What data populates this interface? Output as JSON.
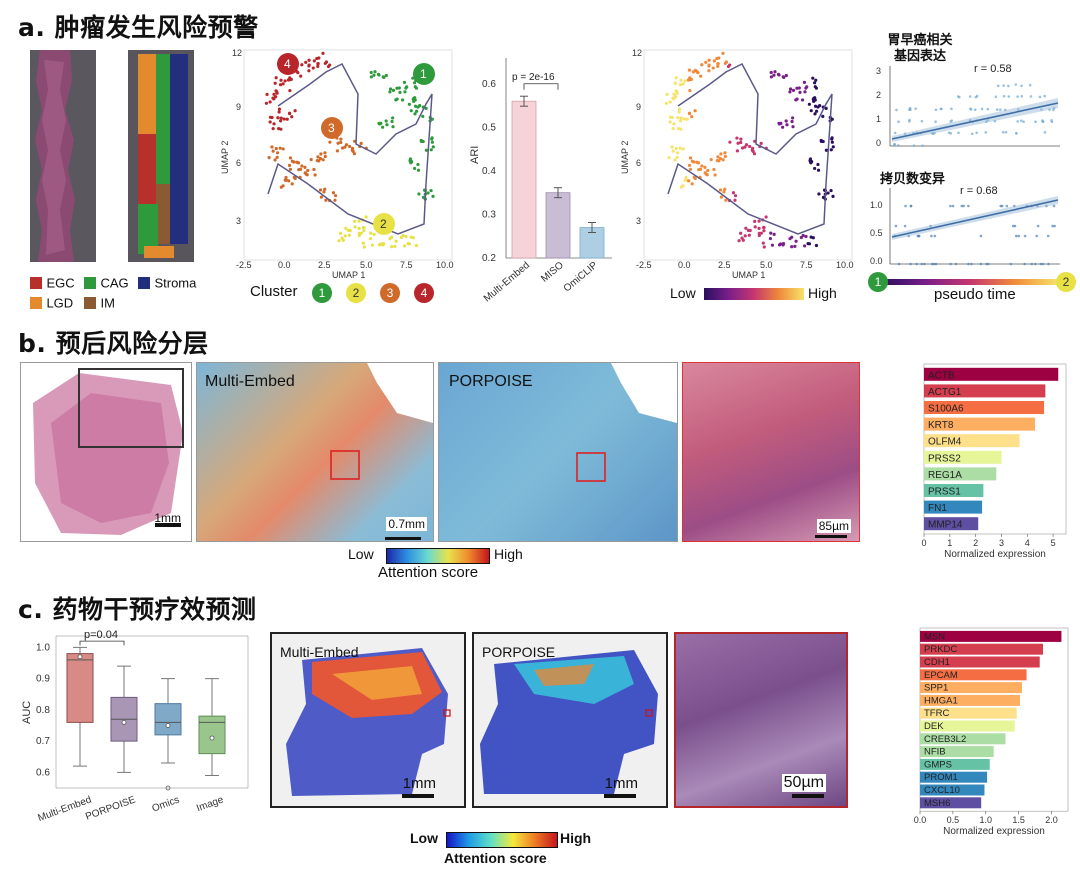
{
  "sections": {
    "a": "a. 肿瘤发生风险预警",
    "b": "b. 预后风险分层",
    "c": "c. 药物干预疗效预测"
  },
  "colors": {
    "EGC": "#b8302c",
    "CAG": "#2f9a3b",
    "Stroma": "#232f7e",
    "LGD": "#e48a2e",
    "IM": "#8c5a32",
    "c1": "#2e9a3c",
    "c2": "#e8e146",
    "c3": "#d06a2a",
    "c4": "#b8262b",
    "bar_multi": "#f6d3d8",
    "bar_miso": "#c9bdd6",
    "bar_omiclip": "#aecfe3"
  },
  "panel_a": {
    "legend": [
      {
        "key": "EGC",
        "label": "EGC"
      },
      {
        "key": "CAG",
        "label": "CAG"
      },
      {
        "key": "Stroma",
        "label": "Stroma"
      },
      {
        "key": "LGD",
        "label": "LGD"
      },
      {
        "key": "IM",
        "label": "IM"
      }
    ],
    "umap_xlabel": "UMAP 1",
    "umap_ylabel": "UMAP 2",
    "umap_xticks": [
      "-2.5",
      "0.0",
      "2.5",
      "5.0",
      "7.5",
      "10.0"
    ],
    "umap_yticks": [
      "12",
      "9",
      "6",
      "3"
    ],
    "cluster_label": "Cluster",
    "clusters": [
      "1",
      "2",
      "3",
      "4"
    ],
    "gradient_low": "Low",
    "gradient_high": "High",
    "pseudo_time": "pseudo time",
    "pseudo_start": "1",
    "pseudo_end": "2",
    "scatter1_title_line1": "胃早癌相关",
    "scatter1_title_line2": "基因表达",
    "scatter1_r": "r = 0.58",
    "scatter1_yticks": [
      "3",
      "2",
      "1",
      "0"
    ],
    "scatter2_title": "拷贝数变异",
    "scatter2_r": "r = 0.68",
    "scatter2_yticks": [
      "1.0",
      "0.5",
      "0.0"
    ]
  },
  "chart_data": [
    {
      "type": "bar",
      "categories": [
        "Multi-Embed",
        "MISO",
        "OmiCLIP"
      ],
      "values": [
        0.56,
        0.35,
        0.27
      ],
      "ylabel": "ARI",
      "yticks": [
        "0.6",
        "0.5",
        "0.4",
        "0.3",
        "0.2"
      ],
      "ylim": [
        0.2,
        0.65
      ],
      "annotation": "p = 2e-16"
    },
    {
      "type": "bar",
      "orientation": "horizontal",
      "categories": [
        "ACTB",
        "ACTG1",
        "S100A6",
        "KRT8",
        "OLFM4",
        "PRSS2",
        "REG1A",
        "PRSS1",
        "FN1",
        "MMP14"
      ],
      "values": [
        5.2,
        4.7,
        4.65,
        4.3,
        3.7,
        3.0,
        2.8,
        2.3,
        2.25,
        2.1
      ],
      "xlabel": "Normalized expression",
      "xticks": [
        "0",
        "1",
        "2",
        "3",
        "4",
        "5"
      ],
      "xlim": [
        0,
        5.5
      ]
    },
    {
      "type": "box",
      "categories": [
        "Multi-Embed",
        "PORPOISE",
        "Omics",
        "Image"
      ],
      "ylabel": "AUC",
      "yticks": [
        "1.0",
        "0.9",
        "0.8",
        "0.7",
        "0.6"
      ],
      "ylim": [
        0.55,
        1.03
      ],
      "annotation": "p=0.04",
      "boxes": [
        {
          "q1": 0.76,
          "median": 0.96,
          "q3": 0.98,
          "lo": 0.62,
          "hi": 1.0,
          "mean": 0.97
        },
        {
          "q1": 0.7,
          "median": 0.77,
          "q3": 0.84,
          "lo": 0.6,
          "hi": 0.94,
          "mean": 0.76
        },
        {
          "q1": 0.72,
          "median": 0.76,
          "q3": 0.82,
          "lo": 0.63,
          "hi": 0.9,
          "mean": 0.75,
          "outlier": 0.55
        },
        {
          "q1": 0.66,
          "median": 0.76,
          "q3": 0.78,
          "lo": 0.59,
          "hi": 0.9,
          "mean": 0.71
        }
      ]
    },
    {
      "type": "bar",
      "orientation": "horizontal",
      "categories": [
        "MSN",
        "PRKDC",
        "CDH1",
        "EPCAM",
        "SPP1",
        "HMGA1",
        "TFRC",
        "DEK",
        "CREB3L2",
        "NFIB",
        "GMPS",
        "PROM1",
        "CXCL10",
        "MSH6"
      ],
      "values": [
        2.15,
        1.87,
        1.82,
        1.62,
        1.55,
        1.52,
        1.47,
        1.44,
        1.3,
        1.12,
        1.06,
        1.02,
        0.98,
        0.93
      ],
      "xlabel": "Normalized expression",
      "xticks": [
        "0.0",
        "0.5",
        "1.0",
        "1.5",
        "2.0"
      ],
      "xlim": [
        0,
        2.25
      ]
    }
  ],
  "panel_b": {
    "wsi_scale": "1mm",
    "multi_label": "Multi-Embed",
    "multi_scale": "0.7mm",
    "porpoise_label": "PORPOISE",
    "he_scale": "85µm",
    "cb_low": "Low",
    "cb_high": "High",
    "cb_title": "Attention score"
  },
  "panel_c": {
    "multi_label": "Multi-Embed",
    "porpoise_label": "PORPOISE",
    "scale1": "1mm",
    "scale2": "1mm",
    "he_scale": "50µm",
    "cb_low": "Low",
    "cb_high": "High",
    "cb_title": "Attention score"
  }
}
